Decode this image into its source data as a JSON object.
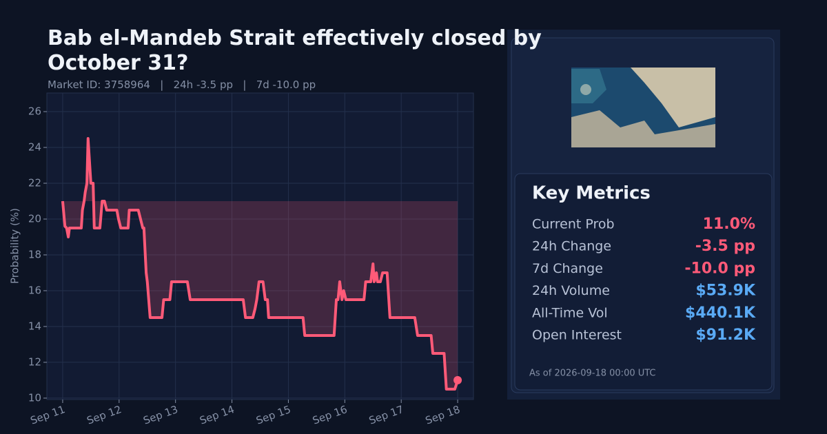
{
  "chart_data": {
    "type": "line",
    "title": "Bab el-Mandeb Strait effectively closed by October 31?",
    "subtitle": "Market ID: 3758964   |   24h -3.5 pp   |   7d -10.0 pp",
    "ylabel": "Probability (%)",
    "x": [
      11.0,
      11.04,
      11.07,
      11.1,
      11.12,
      11.16,
      11.33,
      11.35,
      11.38,
      11.4,
      11.43,
      11.45,
      11.48,
      11.5,
      11.54,
      11.56,
      11.66,
      11.7,
      11.74,
      11.78,
      11.96,
      11.99,
      12.03,
      12.16,
      12.18,
      12.34,
      12.38,
      12.42,
      12.44,
      12.48,
      12.5,
      12.55,
      12.76,
      12.79,
      12.9,
      12.93,
      13.21,
      13.26,
      14.2,
      14.24,
      14.37,
      14.41,
      14.44,
      14.48,
      14.55,
      14.59,
      14.63,
      14.65,
      15.26,
      15.29,
      15.81,
      15.85,
      15.88,
      15.91,
      15.95,
      15.98,
      16.02,
      16.34,
      16.37,
      16.46,
      16.5,
      16.52,
      16.56,
      16.58,
      16.63,
      16.67,
      16.75,
      16.8,
      17.24,
      17.29,
      17.53,
      17.56,
      17.76,
      17.8,
      17.95,
      18.0
    ],
    "values": [
      21.0,
      19.6,
      19.5,
      19.0,
      19.5,
      19.5,
      19.5,
      20.5,
      21.0,
      21.5,
      22.0,
      24.5,
      23.0,
      22.0,
      22.0,
      19.5,
      19.5,
      21.0,
      21.0,
      20.5,
      20.5,
      20.0,
      19.5,
      19.5,
      20.5,
      20.5,
      20.0,
      19.5,
      19.5,
      17.0,
      16.5,
      14.5,
      14.5,
      15.5,
      15.5,
      16.5,
      16.5,
      15.5,
      15.5,
      14.5,
      14.5,
      15.0,
      15.5,
      16.5,
      16.5,
      15.5,
      15.5,
      14.5,
      14.5,
      13.5,
      13.5,
      15.5,
      15.5,
      16.5,
      15.5,
      16.0,
      15.5,
      15.5,
      16.5,
      16.5,
      17.5,
      16.5,
      17.0,
      16.5,
      16.5,
      17.0,
      17.0,
      14.5,
      14.5,
      13.5,
      13.5,
      12.5,
      12.5,
      10.5,
      10.5,
      11.0
    ],
    "color": "#ff5a78",
    "xlim": [
      10.72,
      18.28
    ],
    "xticks": [
      {
        "value": 11,
        "label": "Sep 11"
      },
      {
        "value": 12,
        "label": "Sep 12"
      },
      {
        "value": 13,
        "label": "Sep 13"
      },
      {
        "value": 14,
        "label": "Sep 14"
      },
      {
        "value": 15,
        "label": "Sep 15"
      },
      {
        "value": 16,
        "label": "Sep 16"
      },
      {
        "value": 17,
        "label": "Sep 17"
      },
      {
        "value": 18,
        "label": "Sep 18"
      }
    ],
    "ylim": [
      9.92,
      27.04
    ],
    "yticks": [
      10,
      12,
      14,
      16,
      18,
      20,
      22,
      24,
      26
    ],
    "grid": true
  },
  "panel": {
    "title": "Key Metrics",
    "rows": [
      {
        "label": "Current Prob",
        "value": "11.0%",
        "color": "#ff5a78"
      },
      {
        "label": "24h Change",
        "value": "-3.5 pp",
        "color": "#ff5a78"
      },
      {
        "label": "7d Change",
        "value": "-10.0 pp",
        "color": "#ff5a78"
      },
      {
        "label": "24h Volume",
        "value": "$53.9K",
        "color": "#5aaaf5"
      },
      {
        "label": "All-Time Vol",
        "value": "$440.1K",
        "color": "#5aaaf5"
      },
      {
        "label": "Open Interest",
        "value": "$91.2K",
        "color": "#5aaaf5"
      }
    ],
    "as_of": "As of 2026-09-18 00:00 UTC"
  }
}
